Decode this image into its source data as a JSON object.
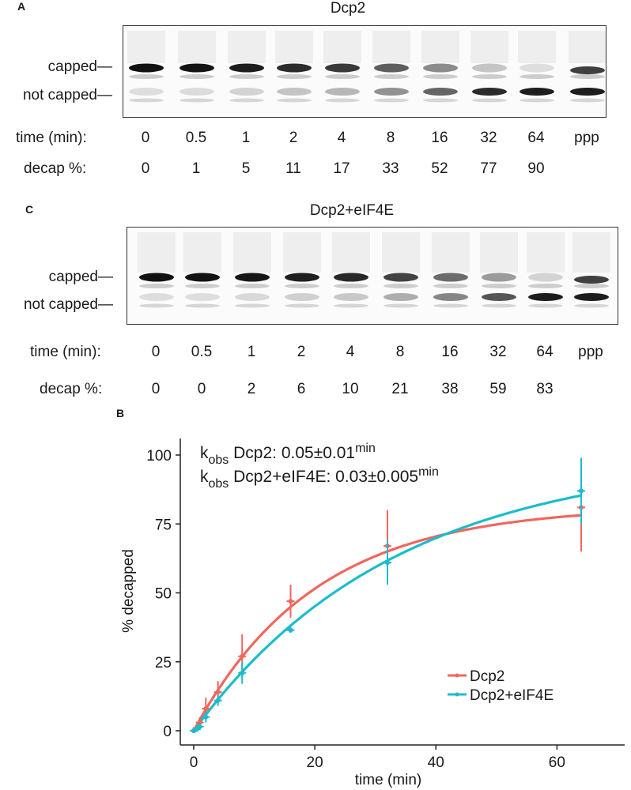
{
  "panel_A": {
    "letter": "A",
    "title": "Dcp2",
    "band_capped": "capped",
    "band_not_capped": "not capped",
    "time_label": "time (min):",
    "decap_label": "decap %:",
    "times": [
      "0",
      "0.5",
      "1",
      "2",
      "4",
      "8",
      "16",
      "32",
      "64",
      "ppp"
    ],
    "decap": [
      "0",
      "1",
      "5",
      "11",
      "17",
      "33",
      "52",
      "77",
      "90",
      ""
    ]
  },
  "panel_C": {
    "letter": "C",
    "title": "Dcp2+eIF4E",
    "band_capped": "capped",
    "band_not_capped": "not capped",
    "time_label": "time (min):",
    "decap_label": "decap %:",
    "times": [
      "0",
      "0.5",
      "1",
      "2",
      "4",
      "8",
      "16",
      "32",
      "64",
      "ppp"
    ],
    "decap": [
      "0",
      "0",
      "2",
      "6",
      "10",
      "21",
      "38",
      "59",
      "83",
      ""
    ]
  },
  "panel_B": {
    "letter": "B",
    "k_prefix": "k",
    "k_sub": "obs",
    "annotation1_text": " Dcp2: 0.05±0.01",
    "annotation2_text": " Dcp2+eIF4E: 0.03±0.005",
    "annotation_sup": "min"
  },
  "chart_data": {
    "type": "line",
    "xlabel": "time (min)",
    "ylabel": "% decapped",
    "xlim": [
      -2,
      66
    ],
    "ylim": [
      0,
      100
    ],
    "x_ticks": [
      0,
      20,
      40,
      60
    ],
    "y_ticks": [
      0,
      25,
      50,
      75,
      100
    ],
    "legend_position": "bottom-right",
    "series": [
      {
        "name": "Dcp2",
        "color": "#f0675e",
        "k_obs": 0.05,
        "plateau": 81.5,
        "x": [
          0,
          0.5,
          1,
          2,
          4,
          8,
          16,
          32,
          64
        ],
        "y": [
          0,
          1,
          3,
          8,
          14,
          27,
          47,
          67,
          81
        ],
        "err": [
          0,
          1,
          2,
          4,
          4,
          8,
          6,
          13,
          16
        ]
      },
      {
        "name": "Dcp2+eIF4E",
        "color": "#1bbccb",
        "k_obs": 0.03,
        "plateau": 100,
        "x": [
          0,
          0.5,
          1,
          2,
          4,
          8,
          16,
          32,
          64
        ],
        "y": [
          0,
          0.5,
          1.5,
          5,
          11,
          21,
          36.5,
          61,
          87
        ],
        "err": [
          0,
          0.5,
          1,
          2,
          2,
          4,
          1,
          8,
          12
        ]
      }
    ]
  }
}
